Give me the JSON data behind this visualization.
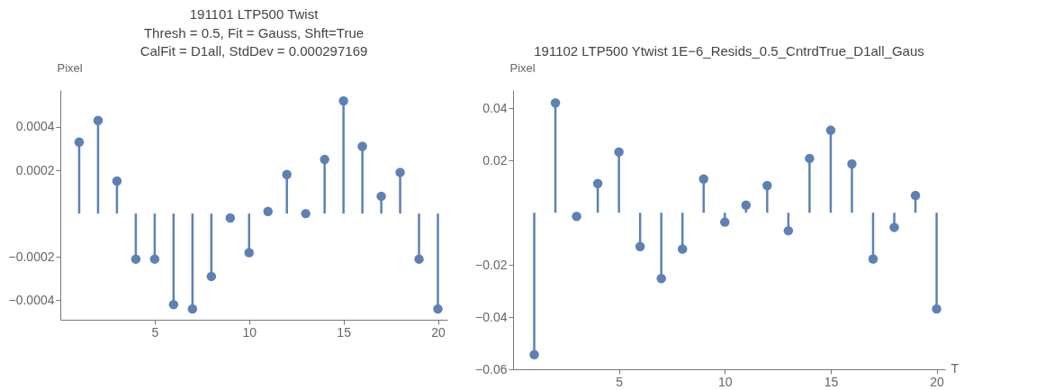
{
  "chart_data": [
    {
      "type": "lollipop",
      "title": "191101 LTP500 Twist",
      "subtitle": "Thresh = 0.5, Fit = Gauss, Shft=True\nCalFit = D1all, StdDev = 0.000297169",
      "ylabel": "Pixel",
      "x": [
        1,
        2,
        3,
        4,
        5,
        6,
        7,
        8,
        9,
        10,
        11,
        12,
        13,
        14,
        15,
        16,
        17,
        18,
        19,
        20
      ],
      "series": [
        {
          "color": "#5e81b5",
          "values": [
            0.00033,
            0.00043,
            0.00015,
            -0.00021,
            -0.00021,
            -0.00042,
            -0.00044,
            -0.00029,
            -2e-05,
            -0.00018,
            1e-05,
            0.00018,
            0,
            0.00025,
            0.00052,
            0.00031,
            8e-05,
            0.00019,
            -0.00021,
            -0.00044
          ]
        }
      ],
      "xlim": [
        0,
        20.5
      ],
      "xticks": [
        5,
        10,
        15,
        20
      ],
      "ylim": [
        -0.00049,
        0.00057
      ],
      "yticks": [
        -0.0004,
        -0.0002,
        0.0002,
        0.0004
      ],
      "grid": false,
      "marker": "circle"
    },
    {
      "type": "lollipop",
      "title": "191102 LTP500 Ytwist 1E−6_Resids_0.5_CntrdTrue_D1all_Gaus",
      "ylabel": "Pixel",
      "xlabel": "T",
      "x": [
        1,
        2,
        3,
        4,
        5,
        6,
        7,
        8,
        9,
        10,
        11,
        12,
        13,
        14,
        15,
        16,
        17,
        18,
        19,
        20
      ],
      "series": [
        {
          "color": "#5e81b5",
          "values": [
            -0.0544,
            0.0421,
            -0.0014,
            0.0112,
            0.0233,
            -0.013,
            -0.0252,
            -0.0139,
            0.0129,
            -0.0036,
            0.0029,
            0.0104,
            -0.0069,
            0.0208,
            0.0316,
            0.0187,
            -0.0177,
            -0.0056,
            0.0066,
            -0.0369
          ]
        }
      ],
      "xlim": [
        0,
        20.4
      ],
      "xticks": [
        5,
        10,
        15,
        20
      ],
      "ylim": [
        -0.06,
        0.047
      ],
      "yticks": [
        -0.06,
        -0.04,
        -0.02,
        0.02,
        0.04
      ],
      "grid": false,
      "marker": "circle"
    }
  ]
}
